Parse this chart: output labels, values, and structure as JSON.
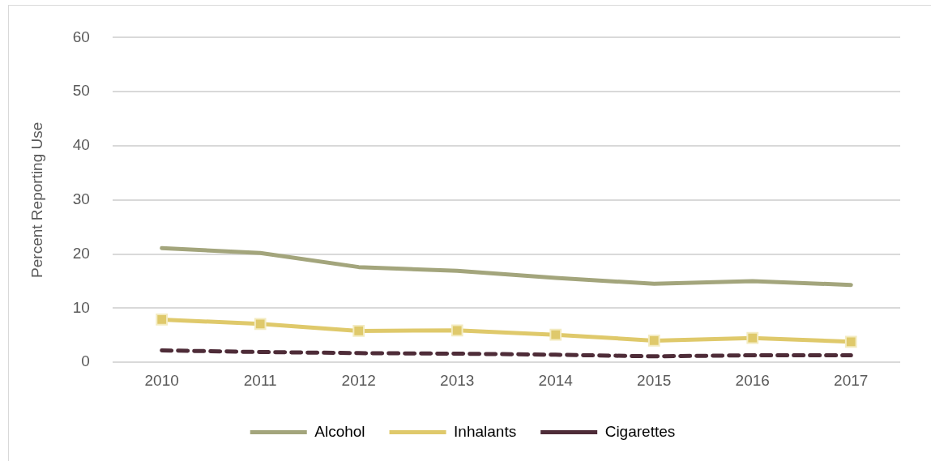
{
  "chart_data": {
    "type": "line",
    "ylabel": "Percent Reporting Use",
    "categories": [
      "2010",
      "2011",
      "2012",
      "2013",
      "2014",
      "2015",
      "2016",
      "2017"
    ],
    "series": [
      {
        "name": "Alcohol",
        "color": "#a3a57c",
        "marker": "none",
        "line_style": "solid",
        "values": [
          21.1,
          20.2,
          17.6,
          16.9,
          15.6,
          14.5,
          15.0,
          14.3
        ]
      },
      {
        "name": "Inhalants",
        "color": "#dfc96b",
        "marker": "square",
        "line_style": "solid",
        "values": [
          7.9,
          7.1,
          5.8,
          5.9,
          5.1,
          4.0,
          4.5,
          3.8
        ]
      },
      {
        "name": "Cigarettes",
        "color": "#4e2c38",
        "marker": "none",
        "line_style": "dashed",
        "values": [
          2.2,
          1.9,
          1.7,
          1.6,
          1.4,
          1.1,
          1.3,
          1.3
        ]
      }
    ],
    "ylim": [
      0,
      60
    ],
    "yticks": [
      0,
      10,
      20,
      30,
      40,
      50,
      60
    ],
    "grid": "y",
    "legend": "bottom"
  }
}
